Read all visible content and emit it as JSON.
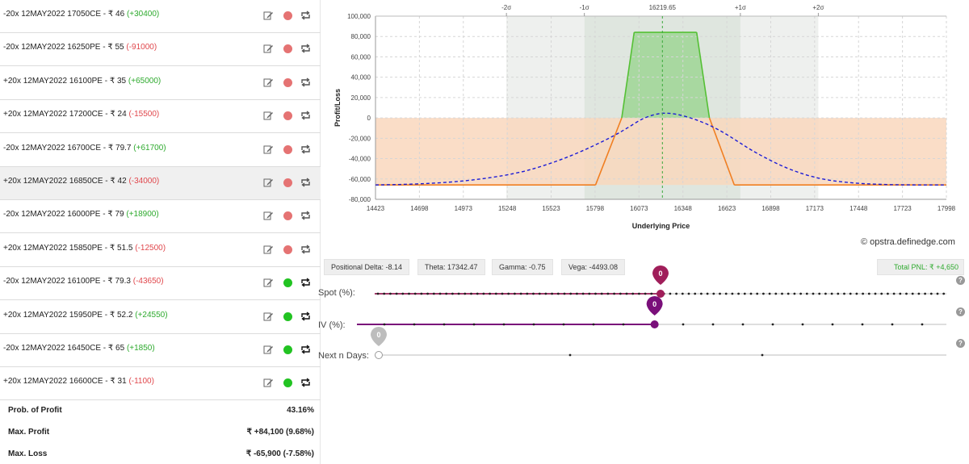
{
  "legs": [
    {
      "text": "-20x 12MAY2022 17050CE - ₹ 46",
      "pnl": "(+30400)",
      "pnl_sign": "pos",
      "status": "red"
    },
    {
      "text": "-20x 12MAY2022 16250PE - ₹ 55",
      "pnl": "(-91000)",
      "pnl_sign": "neg",
      "status": "red"
    },
    {
      "text": "+20x 12MAY2022 16100PE - ₹ 35",
      "pnl": "(+65000)",
      "pnl_sign": "pos",
      "status": "red"
    },
    {
      "text": "+20x 12MAY2022 17200CE - ₹ 24",
      "pnl": "(-15500)",
      "pnl_sign": "neg",
      "status": "red"
    },
    {
      "text": "-20x 12MAY2022 16700CE - ₹ 79.7",
      "pnl": "(+61700)",
      "pnl_sign": "pos",
      "status": "red"
    },
    {
      "text": "+20x 12MAY2022 16850CE - ₹ 42",
      "pnl": "(-34000)",
      "pnl_sign": "neg",
      "status": "red"
    },
    {
      "text": "-20x 12MAY2022 16000PE - ₹ 79",
      "pnl": "(+18900)",
      "pnl_sign": "pos",
      "status": "red"
    },
    {
      "text": "+20x 12MAY2022 15850PE - ₹ 51.5",
      "pnl": "(-12500)",
      "pnl_sign": "neg",
      "status": "red"
    },
    {
      "text": "-20x 12MAY2022 16100PE - ₹ 79.3",
      "pnl": "(-43650)",
      "pnl_sign": "neg",
      "status": "green"
    },
    {
      "text": "+20x 12MAY2022 15950PE - ₹ 52.2",
      "pnl": "(+24550)",
      "pnl_sign": "pos",
      "status": "green"
    },
    {
      "text": "-20x 12MAY2022 16450CE - ₹ 65",
      "pnl": "(+1850)",
      "pnl_sign": "pos",
      "status": "green"
    },
    {
      "text": "+20x 12MAY2022 16600CE - ₹ 31",
      "pnl": "(-1100)",
      "pnl_sign": "neg",
      "status": "green"
    }
  ],
  "summary": {
    "prob_label": "Prob. of Profit",
    "prob_value": "43.16%",
    "max_profit_label": "Max. Profit",
    "max_profit_value": "₹ +84,100 (9.68%)",
    "max_loss_label": "Max. Loss",
    "max_loss_value": "₹ -65,900 (-7.58%)"
  },
  "chart_data": {
    "type": "line",
    "xlabel": "Underlying Price",
    "ylabel": "Profit/Loss",
    "xlim": [
      14423,
      17998
    ],
    "ylim": [
      -80000,
      100000
    ],
    "x_ticks": [
      14423,
      14698,
      14973,
      15248,
      15523,
      15798,
      16073,
      16348,
      16623,
      16898,
      17173,
      17448,
      17723,
      17998
    ],
    "y_ticks": [
      100000,
      80000,
      60000,
      40000,
      20000,
      0,
      -20000,
      -40000,
      -60000,
      -80000
    ],
    "y_tick_labels": [
      "100,000",
      "80,000",
      "60,000",
      "40,000",
      "20,000",
      "0",
      "-20,000",
      "-40,000",
      "-60,000",
      "-80,000"
    ],
    "spot": 16219.65,
    "spot_label": "16219.65",
    "sigma_labels": [
      {
        "label": "-2σ",
        "x": 15243
      },
      {
        "label": "-1σ",
        "x": 15731
      },
      {
        "label": "+1σ",
        "x": 16708
      },
      {
        "label": "+2σ",
        "x": 17196
      }
    ],
    "series": [
      {
        "style": "expiry-payoff",
        "x": [
          14423,
          15801,
          15965,
          16043,
          16434,
          16514,
          16670,
          17998
        ],
        "y": [
          -65900,
          -65900,
          0,
          84100,
          84100,
          0,
          -65900,
          -65900
        ]
      },
      {
        "style": "target-payoff",
        "x": [
          14423,
          14700,
          15000,
          15300,
          15500,
          15700,
          15900,
          16000,
          16100,
          16200,
          16250,
          16300,
          16400,
          16500,
          16600,
          16700,
          16800,
          17000,
          17200,
          17400,
          17600,
          17800,
          17998
        ],
        "y": [
          -65900,
          -65000,
          -62000,
          -55000,
          -46000,
          -34000,
          -19000,
          -10000,
          0,
          4600,
          4650,
          4000,
          0,
          -6000,
          -14000,
          -24000,
          -34000,
          -50000,
          -60000,
          -64000,
          -65500,
          -65900,
          -65900
        ]
      }
    ],
    "colors": {
      "profit_fill": "#a8d8a0",
      "loss_fill": "#f9d7bd",
      "profit_line": "#55c035",
      "loss_line": "#f07f22",
      "target_line": "#1c1cd6"
    }
  },
  "credit": "© opstra.definedge.com",
  "greeks": {
    "delta": "Positional Delta: -8.14",
    "theta": "Theta: 17342.47",
    "gamma": "Gamma: -0.75",
    "vega": "Vega: -4493.08",
    "total_pnl": "Total PNL: ₹ +4,650"
  },
  "sliders": {
    "spot": {
      "label": "Spot (%):",
      "value": "0",
      "level": 0.5
    },
    "iv": {
      "label": "IV (%):",
      "value": "0",
      "level": 0.5
    },
    "days": {
      "label": "Next n Days:",
      "value": "0",
      "level": 0
    }
  },
  "help": "?"
}
